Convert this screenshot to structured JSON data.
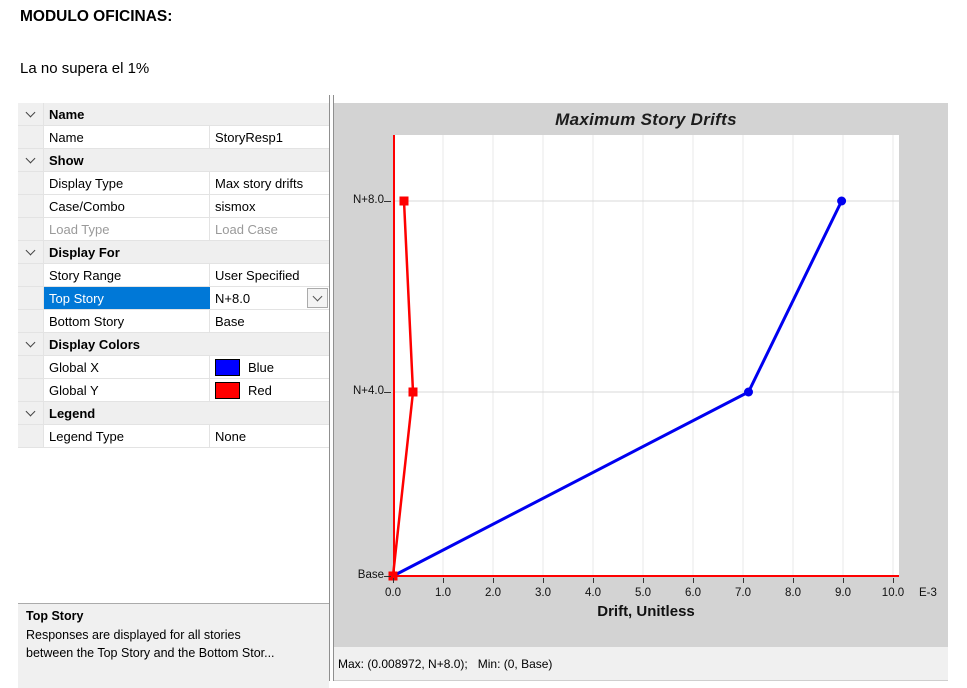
{
  "page": {
    "heading": "MODULO OFICINAS:",
    "subheading": "La no supera el 1%"
  },
  "panel": {
    "rows": [
      {
        "type": "group",
        "label": "Name"
      },
      {
        "type": "item",
        "label": "Name",
        "value": "StoryResp1"
      },
      {
        "type": "group",
        "label": "Show"
      },
      {
        "type": "item",
        "label": "Display Type",
        "value": "Max story drifts"
      },
      {
        "type": "item",
        "label": "Case/Combo",
        "value": "sismox"
      },
      {
        "type": "item-disabled",
        "label": "Load Type",
        "value": "Load Case"
      },
      {
        "type": "group",
        "label": "Display For"
      },
      {
        "type": "item",
        "label": "Story Range",
        "value": "User Specified"
      },
      {
        "type": "item-selected",
        "label": "Top Story",
        "value": "N+8.0"
      },
      {
        "type": "item",
        "label": "Bottom Story",
        "value": "Base"
      },
      {
        "type": "group",
        "label": "Display Colors"
      },
      {
        "type": "item-color",
        "label": "Global X",
        "value": "Blue",
        "swatch": "#0000ff"
      },
      {
        "type": "item-color",
        "label": "Global Y",
        "value": "Red",
        "swatch": "#ff0000"
      },
      {
        "type": "group",
        "label": "Legend"
      },
      {
        "type": "item",
        "label": "Legend Type",
        "value": "None"
      }
    ],
    "help": {
      "title": "Top Story",
      "line1": "Responses are displayed for all stories",
      "line2": "between the Top Story and the Bottom Stor..."
    },
    "selection_color": "#0078d7"
  },
  "chart_data": {
    "type": "line",
    "title": "Maximum Story Drifts",
    "xlabel": "Drift, Unitless",
    "x_ticks": [
      "0.0",
      "1.0",
      "2.0",
      "3.0",
      "4.0",
      "5.0",
      "6.0",
      "7.0",
      "8.0",
      "9.0",
      "10.0"
    ],
    "x_suffix": "E-3",
    "xlim": [
      0,
      0.01
    ],
    "categories": [
      "Base",
      "N+4.0",
      "N+8.0"
    ],
    "series": [
      {
        "name": "Global X",
        "color": "#0000f0",
        "marker": "circle",
        "values": [
          0,
          0.00711,
          0.008972
        ]
      },
      {
        "name": "Global Y",
        "color": "#fe0000",
        "marker": "square",
        "values": [
          0,
          0.0004,
          0.00022
        ]
      }
    ],
    "grid": true,
    "legend": "none",
    "background": "#d3d3d3",
    "axis_line_color": "#fe0000"
  },
  "status_bar": {
    "text": "Max: (0.008972, N+8.0);   Min: (0, Base)"
  }
}
